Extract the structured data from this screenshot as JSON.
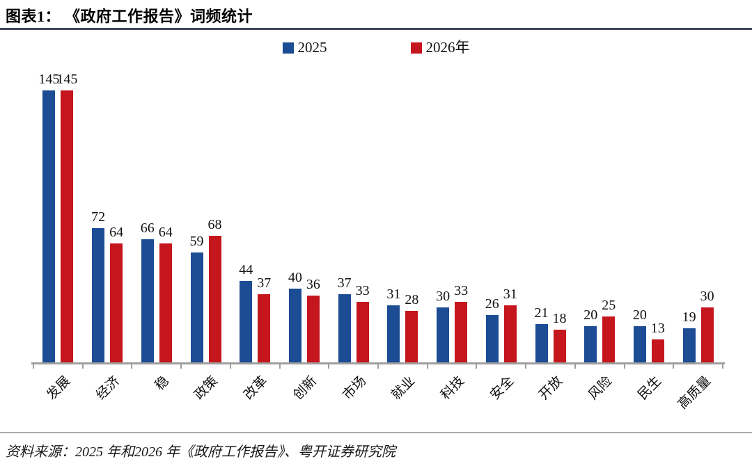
{
  "header": {
    "title": "图表1： 《政府工作报告》词频统计"
  },
  "chart_data": {
    "type": "bar",
    "title": "《政府工作报告》词频统计",
    "categories": [
      "发展",
      "经济",
      "稳",
      "政策",
      "改革",
      "创新",
      "市场",
      "就业",
      "科技",
      "安全",
      "开放",
      "风险",
      "民生",
      "高质量"
    ],
    "series": [
      {
        "name": "2025",
        "color": "#1b4c94",
        "values": [
          145,
          72,
          66,
          59,
          44,
          40,
          37,
          31,
          30,
          26,
          21,
          20,
          20,
          19
        ]
      },
      {
        "name": "2026年",
        "color": "#c5161d",
        "values": [
          145,
          64,
          64,
          68,
          37,
          36,
          33,
          28,
          33,
          31,
          18,
          25,
          13,
          30
        ]
      }
    ],
    "ylim": [
      0,
      158
    ],
    "value_labels": true,
    "legend_position": "top-center",
    "grid": false,
    "axis_color": "#9e9e9e"
  },
  "footer": {
    "source": "资料来源：2025 年和2026 年《政府工作报告》、粤开证券研究院"
  },
  "colors": {
    "title_rule": "#3e4757",
    "footer_rule": "#ababab"
  }
}
